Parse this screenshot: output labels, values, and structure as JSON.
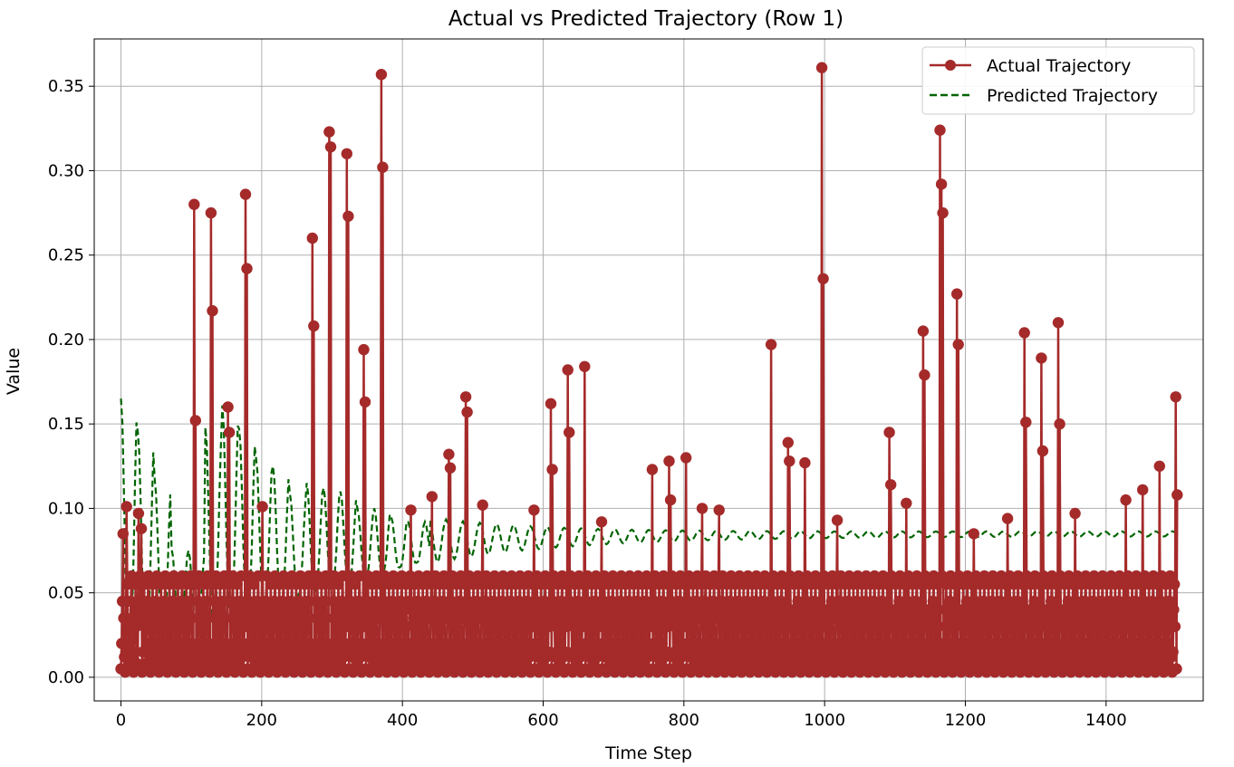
{
  "chart_data": {
    "type": "line",
    "title": "Actual vs Predicted Trajectory (Row 1)",
    "xlabel": "Time Step",
    "ylabel": "Value",
    "xlim": [
      -38,
      1538
    ],
    "ylim": [
      -0.014,
      0.378
    ],
    "xticks": [
      0,
      200,
      400,
      600,
      800,
      1000,
      1200,
      1400
    ],
    "xtick_labels": [
      "0",
      "200",
      "400",
      "600",
      "800",
      "1000",
      "1200",
      "1400"
    ],
    "yticks": [
      0.0,
      0.05,
      0.1,
      0.15,
      0.2,
      0.25,
      0.3,
      0.35
    ],
    "ytick_labels": [
      "0.00",
      "0.05",
      "0.10",
      "0.15",
      "0.20",
      "0.25",
      "0.30",
      "0.35"
    ],
    "grid": true,
    "legend_position": "top-right",
    "series": [
      {
        "name": "Actual Trajectory",
        "color": "#a52a2a",
        "style": "solid-with-markers",
        "period": 12,
        "base_pattern": [
          0.005,
          0.02,
          0.045,
          0.06,
          0.035,
          0.012,
          0.003,
          0.015,
          0.04,
          0.055,
          0.03,
          0.008
        ],
        "spikes": [
          {
            "x": 3,
            "y": 0.085
          },
          {
            "x": 8,
            "y": 0.101
          },
          {
            "x": 25,
            "y": 0.097
          },
          {
            "x": 29,
            "y": 0.088
          },
          {
            "x": 104,
            "y": 0.28
          },
          {
            "x": 106,
            "y": 0.152
          },
          {
            "x": 128,
            "y": 0.275
          },
          {
            "x": 130,
            "y": 0.217
          },
          {
            "x": 152,
            "y": 0.16
          },
          {
            "x": 154,
            "y": 0.145
          },
          {
            "x": 177,
            "y": 0.286
          },
          {
            "x": 179,
            "y": 0.242
          },
          {
            "x": 201,
            "y": 0.101
          },
          {
            "x": 272,
            "y": 0.26
          },
          {
            "x": 274,
            "y": 0.208
          },
          {
            "x": 296,
            "y": 0.323
          },
          {
            "x": 298,
            "y": 0.314
          },
          {
            "x": 321,
            "y": 0.31
          },
          {
            "x": 323,
            "y": 0.273
          },
          {
            "x": 345,
            "y": 0.194
          },
          {
            "x": 347,
            "y": 0.163
          },
          {
            "x": 370,
            "y": 0.357
          },
          {
            "x": 372,
            "y": 0.302
          },
          {
            "x": 412,
            "y": 0.099
          },
          {
            "x": 442,
            "y": 0.107
          },
          {
            "x": 466,
            "y": 0.132
          },
          {
            "x": 468,
            "y": 0.124
          },
          {
            "x": 490,
            "y": 0.166
          },
          {
            "x": 492,
            "y": 0.157
          },
          {
            "x": 514,
            "y": 0.102
          },
          {
            "x": 587,
            "y": 0.099
          },
          {
            "x": 611,
            "y": 0.162
          },
          {
            "x": 613,
            "y": 0.123
          },
          {
            "x": 635,
            "y": 0.182
          },
          {
            "x": 637,
            "y": 0.145
          },
          {
            "x": 659,
            "y": 0.184
          },
          {
            "x": 683,
            "y": 0.092
          },
          {
            "x": 755,
            "y": 0.123
          },
          {
            "x": 779,
            "y": 0.128
          },
          {
            "x": 781,
            "y": 0.105
          },
          {
            "x": 803,
            "y": 0.13
          },
          {
            "x": 826,
            "y": 0.1
          },
          {
            "x": 850,
            "y": 0.099
          },
          {
            "x": 924,
            "y": 0.197
          },
          {
            "x": 948,
            "y": 0.139
          },
          {
            "x": 950,
            "y": 0.128
          },
          {
            "x": 972,
            "y": 0.127
          },
          {
            "x": 996,
            "y": 0.361
          },
          {
            "x": 998,
            "y": 0.236
          },
          {
            "x": 1018,
            "y": 0.093
          },
          {
            "x": 1092,
            "y": 0.145
          },
          {
            "x": 1094,
            "y": 0.114
          },
          {
            "x": 1116,
            "y": 0.103
          },
          {
            "x": 1140,
            "y": 0.205
          },
          {
            "x": 1142,
            "y": 0.179
          },
          {
            "x": 1164,
            "y": 0.324
          },
          {
            "x": 1166,
            "y": 0.292
          },
          {
            "x": 1168,
            "y": 0.275
          },
          {
            "x": 1188,
            "y": 0.227
          },
          {
            "x": 1190,
            "y": 0.197
          },
          {
            "x": 1212,
            "y": 0.085
          },
          {
            "x": 1260,
            "y": 0.094
          },
          {
            "x": 1284,
            "y": 0.204
          },
          {
            "x": 1286,
            "y": 0.151
          },
          {
            "x": 1308,
            "y": 0.189
          },
          {
            "x": 1310,
            "y": 0.134
          },
          {
            "x": 1332,
            "y": 0.21
          },
          {
            "x": 1334,
            "y": 0.15
          },
          {
            "x": 1356,
            "y": 0.097
          },
          {
            "x": 1428,
            "y": 0.105
          },
          {
            "x": 1452,
            "y": 0.111
          },
          {
            "x": 1476,
            "y": 0.125
          },
          {
            "x": 1499,
            "y": 0.166
          },
          {
            "x": 1501,
            "y": 0.108
          }
        ],
        "x_range": [
          0,
          1501
        ]
      },
      {
        "name": "Predicted Trajectory",
        "color": "#006400",
        "style": "dashed",
        "x_range": [
          0,
          1501
        ],
        "baseline": 0.085,
        "peaks": [
          0.165,
          0.145,
          0.117,
          0.076,
          0.075,
          0.148,
          0.161,
          0.147,
          0.13,
          0.125,
          0.109,
          0.115,
          0.112,
          0.11,
          0.1,
          0.1,
          0.095,
          0.092
        ]
      }
    ]
  }
}
